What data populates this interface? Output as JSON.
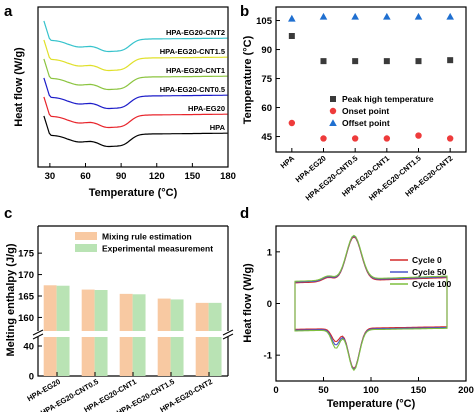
{
  "panels": {
    "a": "a",
    "b": "b",
    "c": "c",
    "d": "d"
  },
  "chart_data": [
    {
      "panel": "a",
      "type": "line",
      "xlabel": "Temperature (°C)",
      "ylabel": "Heat flow (W/g)",
      "xlim": [
        20,
        180
      ],
      "xticks": [
        30,
        60,
        90,
        120,
        150,
        180
      ],
      "yticks_shown": false,
      "series": [
        {
          "name": "HPA",
          "color": "#000000",
          "offset": 0
        },
        {
          "name": "HPA-EG20",
          "color": "#e8242b",
          "offset": 1
        },
        {
          "name": "HPA-EG20-CNT0.5",
          "color": "#1c1cc9",
          "offset": 2
        },
        {
          "name": "HPA-EG20-CNT1",
          "color": "#8bc43f",
          "offset": 3
        },
        {
          "name": "HPA-EG20-CNT1.5",
          "color": "#e0e02a",
          "offset": 4
        },
        {
          "name": "HPA-EG20-CNT2",
          "color": "#36c3cc",
          "offset": 5
        }
      ]
    },
    {
      "panel": "b",
      "type": "scatter",
      "ylabel": "Temperature (°C)",
      "ylim": [
        37,
        112
      ],
      "yticks": [
        45,
        60,
        75,
        90,
        105
      ],
      "categories": [
        "HPA",
        "HPA-EG20",
        "HPA-EG20-CNT0.5",
        "HPA-EG20-CNT1",
        "HPA-EG20-CNT1.5",
        "HPA-EG20-CNT2"
      ],
      "legend_position": "middle-right",
      "series": [
        {
          "name": "Peak high temperature",
          "marker": "square",
          "color": "#3a3a3a",
          "values": [
            97,
            84,
            84,
            84,
            84,
            84.5
          ]
        },
        {
          "name": "Onset point",
          "marker": "circle",
          "color": "#ee3b3b",
          "values": [
            52,
            44,
            44,
            44,
            45.5,
            44
          ]
        },
        {
          "name": "Offset point",
          "marker": "triangle",
          "color": "#1f6fd0",
          "values": [
            106,
            107,
            107,
            107,
            107,
            107
          ]
        }
      ]
    },
    {
      "panel": "c",
      "type": "bar",
      "ylabel": "Melting enthalpy (J/g)",
      "axis_break": true,
      "lower_yticks": [
        0,
        40
      ],
      "upper_ylim": [
        158,
        179
      ],
      "upper_yticks": [
        160,
        165,
        170,
        175
      ],
      "categories": [
        "HPA-EG20",
        "HPA-EG20-CNT0.5",
        "HPA-EG20-CNT1",
        "HPA-EG20-CNT1.5",
        "HPA-EG20-CNT2"
      ],
      "legend_position": "top-right",
      "series": [
        {
          "name": "Mixing rule estimation",
          "color": "#f8c9a2",
          "values": [
            167.5,
            166.5,
            165.5,
            164.4,
            163.4
          ]
        },
        {
          "name": "Experimental measurement",
          "color": "#b9e3b4",
          "values": [
            167.4,
            166.4,
            165.4,
            164.2,
            163.4
          ]
        }
      ]
    },
    {
      "panel": "d",
      "type": "line",
      "xlabel": "Temperature (°C)",
      "ylabel": "Heat flow (W/g)",
      "xlim": [
        0,
        200
      ],
      "ylim": [
        -1.5,
        1.5
      ],
      "xticks": [
        0,
        50,
        100,
        150,
        200
      ],
      "yticks": [
        -1,
        0,
        1
      ],
      "legend_position": "top-right",
      "series": [
        {
          "name": "Cycle 0",
          "color": "#d42a2a"
        },
        {
          "name": "Cycle 50",
          "color": "#4b55c8"
        },
        {
          "name": "Cycle 100",
          "color": "#7fbf3f"
        }
      ]
    }
  ]
}
